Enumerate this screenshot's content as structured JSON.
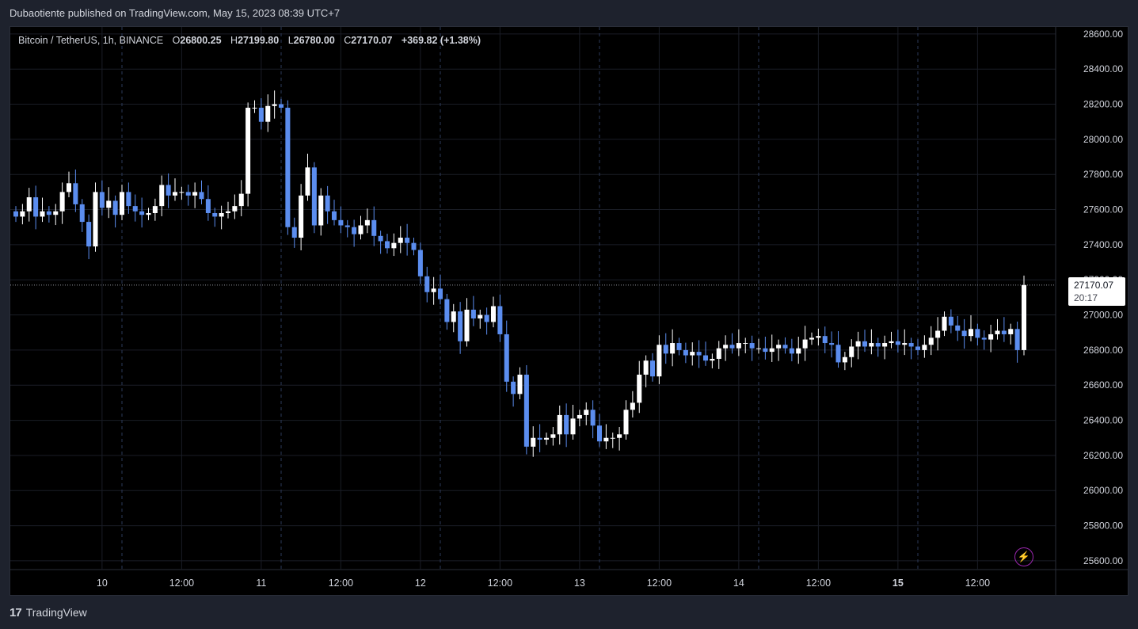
{
  "header": {
    "published_text": "Dubaotiente published on TradingView.com, May 15, 2023 08:39 UTC+7"
  },
  "legend": {
    "symbol": "Bitcoin / TetherUS, 1h, BINANCE",
    "o_label": "O",
    "o_value": "26800.25",
    "h_label": "H",
    "h_value": "27199.80",
    "l_label": "L",
    "l_value": "26780.00",
    "c_label": "C",
    "c_value": "27170.07",
    "change": "+369.82 (+1.38%)"
  },
  "last_price": {
    "value": "27170.07",
    "countdown": "20:17"
  },
  "footer": {
    "brand": "TradingView",
    "logo": "17"
  },
  "icons": {
    "alert": "lightning-icon"
  },
  "colors": {
    "up": "#ffffff",
    "down": "#5b8def",
    "background": "#000000",
    "grid": "#1a1d26"
  },
  "chart_data": {
    "type": "candlestick",
    "timeframe": "1h",
    "ylim": [
      25550,
      28640
    ],
    "y_ticks": [
      "28600.00",
      "28400.00",
      "28200.00",
      "28000.00",
      "27800.00",
      "27600.00",
      "27400.00",
      "27200.00",
      "27000.00",
      "26800.00",
      "26600.00",
      "26400.00",
      "26200.00",
      "26000.00",
      "25800.00",
      "25600.00"
    ],
    "x_ticks": [
      {
        "label": "10",
        "bold": false
      },
      {
        "label": "12:00",
        "bold": false
      },
      {
        "label": "11",
        "bold": false
      },
      {
        "label": "12:00",
        "bold": false
      },
      {
        "label": "12",
        "bold": false
      },
      {
        "label": "12:00",
        "bold": false
      },
      {
        "label": "13",
        "bold": false
      },
      {
        "label": "12:00",
        "bold": false
      },
      {
        "label": "14",
        "bold": false
      },
      {
        "label": "12:00",
        "bold": false
      },
      {
        "label": "15",
        "bold": true
      },
      {
        "label": "12:00",
        "bold": false
      }
    ],
    "closes": [
      27560,
      27590,
      27670,
      27560,
      27590,
      27570,
      27590,
      27700,
      27750,
      27630,
      27530,
      27390,
      27700,
      27610,
      27650,
      27570,
      27700,
      27620,
      27590,
      27570,
      27580,
      27620,
      27740,
      27680,
      27700,
      27700,
      27680,
      27700,
      27660,
      27580,
      27560,
      27580,
      27590,
      27620,
      27690,
      28180,
      28180,
      28100,
      28190,
      28200,
      28180,
      27500,
      27440,
      27680,
      27840,
      27510,
      27680,
      27590,
      27540,
      27510,
      27500,
      27460,
      27510,
      27540,
      27450,
      27420,
      27380,
      27410,
      27440,
      27410,
      27370,
      27220,
      27130,
      27150,
      27090,
      26960,
      27020,
      26850,
      27030,
      26980,
      27000,
      26960,
      27050,
      26890,
      26620,
      26550,
      26660,
      26250,
      26300,
      26290,
      26300,
      26320,
      26430,
      26320,
      26410,
      26430,
      26460,
      26370,
      26280,
      26300,
      26300,
      26320,
      26460,
      26500,
      26660,
      26740,
      26650,
      26830,
      26780,
      26840,
      26800,
      26770,
      26790,
      26770,
      26740,
      26750,
      26810,
      26830,
      26810,
      26840,
      26840,
      26810,
      26810,
      26790,
      26810,
      26830,
      26810,
      26780,
      26810,
      26860,
      26870,
      26880,
      26840,
      26830,
      26730,
      26760,
      26820,
      26850,
      26820,
      26840,
      26820,
      26840,
      26850,
      26830,
      26840,
      26820,
      26800,
      26830,
      26870,
      26910,
      26990,
      26940,
      26910,
      26880,
      26920,
      26870,
      26860,
      26890,
      26910,
      26890,
      26920,
      26800,
      27170
    ],
    "opens": [
      27590,
      27560,
      27590,
      27670,
      27560,
      27590,
      27570,
      27590,
      27700,
      27750,
      27630,
      27530,
      27390,
      27700,
      27610,
      27650,
      27570,
      27700,
      27620,
      27590,
      27570,
      27580,
      27620,
      27740,
      27680,
      27700,
      27700,
      27680,
      27700,
      27660,
      27580,
      27560,
      27580,
      27590,
      27620,
      27690,
      28180,
      28180,
      28100,
      28190,
      28200,
      28180,
      27500,
      27440,
      27680,
      27840,
      27510,
      27680,
      27590,
      27540,
      27510,
      27500,
      27460,
      27510,
      27540,
      27450,
      27420,
      27380,
      27410,
      27440,
      27410,
      27370,
      27220,
      27130,
      27150,
      27090,
      26960,
      27020,
      26850,
      27030,
      26980,
      27000,
      26960,
      27050,
      26890,
      26620,
      26550,
      26660,
      26250,
      26300,
      26290,
      26300,
      26320,
      26430,
      26320,
      26410,
      26430,
      26460,
      26370,
      26280,
      26300,
      26300,
      26320,
      26460,
      26500,
      26660,
      26740,
      26650,
      26830,
      26780,
      26840,
      26800,
      26770,
      26790,
      26770,
      26740,
      26750,
      26810,
      26830,
      26810,
      26840,
      26840,
      26810,
      26810,
      26790,
      26810,
      26830,
      26810,
      26780,
      26810,
      26860,
      26870,
      26880,
      26840,
      26830,
      26730,
      26760,
      26820,
      26850,
      26820,
      26840,
      26820,
      26840,
      26850,
      26830,
      26840,
      26820,
      26800,
      26830,
      26870,
      26910,
      26990,
      26940,
      26910,
      26880,
      26920,
      26870,
      26860,
      26890,
      26910,
      26890,
      26920,
      26800
    ]
  }
}
